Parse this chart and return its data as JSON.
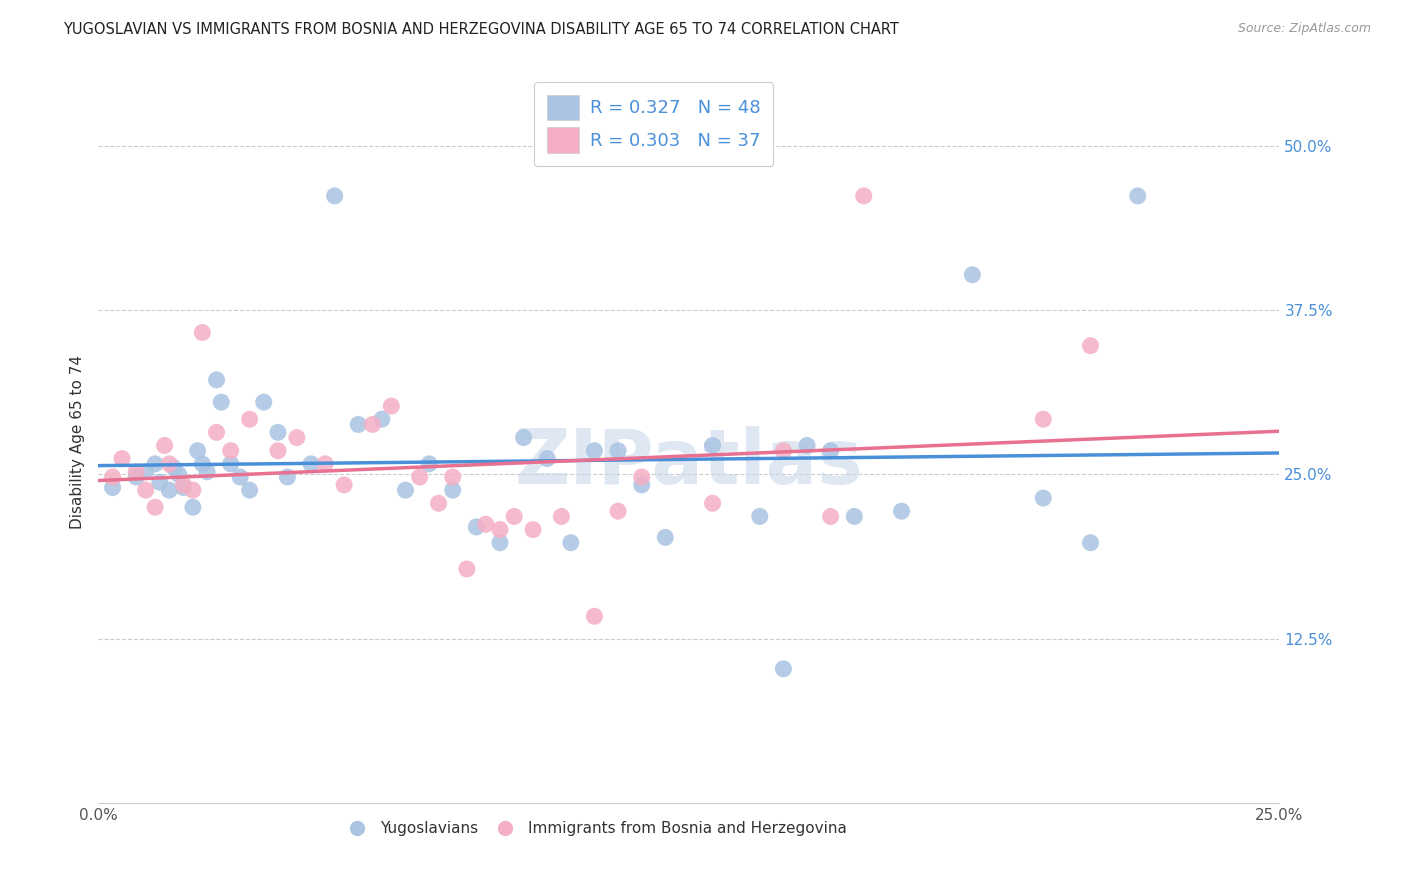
{
  "title": "YUGOSLAVIAN VS IMMIGRANTS FROM BOSNIA AND HERZEGOVINA DISABILITY AGE 65 TO 74 CORRELATION CHART",
  "source": "Source: ZipAtlas.com",
  "ylabel": "Disability Age 65 to 74",
  "xlim": [
    0.0,
    0.25
  ],
  "ylim": [
    0.0,
    0.55
  ],
  "xticks": [
    0.0,
    0.05,
    0.1,
    0.15,
    0.2,
    0.25
  ],
  "xticklabels": [
    "0.0%",
    "",
    "",
    "",
    "",
    "25.0%"
  ],
  "yticks": [
    0.125,
    0.25,
    0.375,
    0.5
  ],
  "yticklabels": [
    "12.5%",
    "25.0%",
    "37.5%",
    "50.0%"
  ],
  "blue_R": 0.327,
  "blue_N": 48,
  "pink_R": 0.303,
  "pink_N": 37,
  "blue_color": "#aac4e2",
  "pink_color": "#f4afc4",
  "blue_line_color": "#4a90d9",
  "pink_line_color": "#e87090",
  "tick_color": "#4a90d9",
  "xtick_color": "#555555",
  "watermark": "ZIPatlas",
  "watermark_color": "#c8d8ea",
  "blue_x": [
    0.003,
    0.008,
    0.01,
    0.012,
    0.013,
    0.015,
    0.016,
    0.017,
    0.018,
    0.02,
    0.021,
    0.022,
    0.023,
    0.025,
    0.026,
    0.028,
    0.03,
    0.032,
    0.035,
    0.038,
    0.04,
    0.045,
    0.05,
    0.055,
    0.06,
    0.065,
    0.07,
    0.075,
    0.08,
    0.085,
    0.09,
    0.095,
    0.1,
    0.105,
    0.11,
    0.115,
    0.12,
    0.13,
    0.14,
    0.145,
    0.15,
    0.155,
    0.16,
    0.17,
    0.185,
    0.2,
    0.21,
    0.22
  ],
  "blue_y": [
    0.24,
    0.248,
    0.252,
    0.258,
    0.244,
    0.238,
    0.255,
    0.25,
    0.24,
    0.225,
    0.268,
    0.258,
    0.252,
    0.322,
    0.305,
    0.258,
    0.248,
    0.238,
    0.305,
    0.282,
    0.248,
    0.258,
    0.462,
    0.288,
    0.292,
    0.238,
    0.258,
    0.238,
    0.21,
    0.198,
    0.278,
    0.262,
    0.198,
    0.268,
    0.268,
    0.242,
    0.202,
    0.272,
    0.218,
    0.102,
    0.272,
    0.268,
    0.218,
    0.222,
    0.402,
    0.232,
    0.198,
    0.462
  ],
  "pink_x": [
    0.003,
    0.005,
    0.008,
    0.01,
    0.012,
    0.014,
    0.015,
    0.018,
    0.02,
    0.022,
    0.025,
    0.028,
    0.032,
    0.038,
    0.042,
    0.048,
    0.052,
    0.058,
    0.062,
    0.068,
    0.072,
    0.075,
    0.078,
    0.082,
    0.085,
    0.088,
    0.092,
    0.098,
    0.105,
    0.11,
    0.115,
    0.13,
    0.145,
    0.155,
    0.162,
    0.2,
    0.21
  ],
  "pink_y": [
    0.248,
    0.262,
    0.252,
    0.238,
    0.225,
    0.272,
    0.258,
    0.242,
    0.238,
    0.358,
    0.282,
    0.268,
    0.292,
    0.268,
    0.278,
    0.258,
    0.242,
    0.288,
    0.302,
    0.248,
    0.228,
    0.248,
    0.178,
    0.212,
    0.208,
    0.218,
    0.208,
    0.218,
    0.142,
    0.222,
    0.248,
    0.228,
    0.268,
    0.218,
    0.462,
    0.292,
    0.348
  ]
}
